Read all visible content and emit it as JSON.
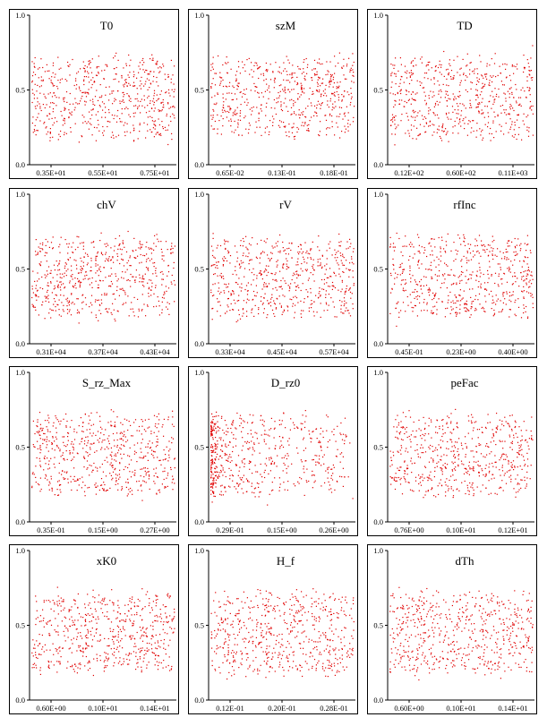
{
  "chart_data": [
    {
      "type": "scatter",
      "title": "T0",
      "xticks": [
        "0.35E+01",
        "0.55E+01",
        "0.75E+01"
      ],
      "yticks": [
        "0.0",
        "0.5",
        "1.0"
      ],
      "ylim": [
        0,
        1
      ],
      "points": 600,
      "color": "#e00000",
      "y_center": 0.45,
      "y_spread": 0.3,
      "density": "uniform"
    },
    {
      "type": "scatter",
      "title": "szM",
      "xticks": [
        "0.65E-02",
        "0.13E-01",
        "0.18E-01"
      ],
      "yticks": [
        "0.0",
        "0.5",
        "1.0"
      ],
      "ylim": [
        0,
        1
      ],
      "points": 600,
      "color": "#e00000",
      "y_center": 0.45,
      "y_spread": 0.3,
      "density": "uniform"
    },
    {
      "type": "scatter",
      "title": "TD",
      "xticks": [
        "0.12E+02",
        "0.60E+02",
        "0.11E+03"
      ],
      "yticks": [
        "0.0",
        "0.5",
        "1.0"
      ],
      "ylim": [
        0,
        1
      ],
      "points": 600,
      "color": "#e00000",
      "y_center": 0.45,
      "y_spread": 0.3,
      "density": "uniform"
    },
    {
      "type": "scatter",
      "title": "chV",
      "xticks": [
        "0.31E+04",
        "0.37E+04",
        "0.43E+04"
      ],
      "yticks": [
        "0.0",
        "0.5",
        "1.0"
      ],
      "ylim": [
        0,
        1
      ],
      "points": 600,
      "color": "#e00000",
      "y_center": 0.45,
      "y_spread": 0.3,
      "density": "uniform"
    },
    {
      "type": "scatter",
      "title": "rV",
      "xticks": [
        "0.33E+04",
        "0.45E+04",
        "0.57E+04"
      ],
      "yticks": [
        "0.0",
        "0.5",
        "1.0"
      ],
      "ylim": [
        0,
        1
      ],
      "points": 600,
      "color": "#e00000",
      "y_center": 0.45,
      "y_spread": 0.3,
      "density": "uniform"
    },
    {
      "type": "scatter",
      "title": "rfInc",
      "xticks": [
        "0.45E-01",
        "0.23E+00",
        "0.40E+00"
      ],
      "yticks": [
        "0.0",
        "0.5",
        "1.0"
      ],
      "ylim": [
        0,
        1
      ],
      "points": 600,
      "color": "#e00000",
      "y_center": 0.45,
      "y_spread": 0.3,
      "density": "uniform"
    },
    {
      "type": "scatter",
      "title": "S_rz_Max",
      "xticks": [
        "0.35E-01",
        "0.15E+00",
        "0.27E+00"
      ],
      "yticks": [
        "0.0",
        "0.5",
        "1.0"
      ],
      "ylim": [
        0,
        1
      ],
      "points": 600,
      "color": "#e00000",
      "y_center": 0.45,
      "y_spread": 0.3,
      "density": "uniform"
    },
    {
      "type": "scatter",
      "title": "D_rz0",
      "xticks": [
        "0.29E-01",
        "0.15E+00",
        "0.26E+00"
      ],
      "yticks": [
        "0.0",
        "0.5",
        "1.0"
      ],
      "ylim": [
        0,
        1
      ],
      "points": 600,
      "color": "#e00000",
      "y_center": 0.45,
      "y_spread": 0.3,
      "density": "left-skewed"
    },
    {
      "type": "scatter",
      "title": "peFac",
      "xticks": [
        "0.76E+00",
        "0.10E+01",
        "0.12E+01"
      ],
      "yticks": [
        "0.0",
        "0.5",
        "1.0"
      ],
      "ylim": [
        0,
        1
      ],
      "points": 600,
      "color": "#e00000",
      "y_center": 0.45,
      "y_spread": 0.3,
      "density": "uniform"
    },
    {
      "type": "scatter",
      "title": "xK0",
      "xticks": [
        "0.60E+00",
        "0.10E+01",
        "0.14E+01"
      ],
      "yticks": [
        "0.0",
        "0.5",
        "1.0"
      ],
      "ylim": [
        0,
        1
      ],
      "points": 600,
      "color": "#e00000",
      "y_center": 0.45,
      "y_spread": 0.3,
      "density": "uniform"
    },
    {
      "type": "scatter",
      "title": "H_f",
      "xticks": [
        "0.12E-01",
        "0.20E-01",
        "0.28E-01"
      ],
      "yticks": [
        "0.0",
        "0.5",
        "1.0"
      ],
      "ylim": [
        0,
        1
      ],
      "points": 600,
      "color": "#e00000",
      "y_center": 0.45,
      "y_spread": 0.3,
      "density": "uniform"
    },
    {
      "type": "scatter",
      "title": "dTh",
      "xticks": [
        "0.60E+00",
        "0.10E+01",
        "0.14E+01"
      ],
      "yticks": [
        "0.0",
        "0.5",
        "1.0"
      ],
      "ylim": [
        0,
        1
      ],
      "points": 600,
      "color": "#e00000",
      "y_center": 0.45,
      "y_spread": 0.3,
      "density": "uniform"
    }
  ]
}
